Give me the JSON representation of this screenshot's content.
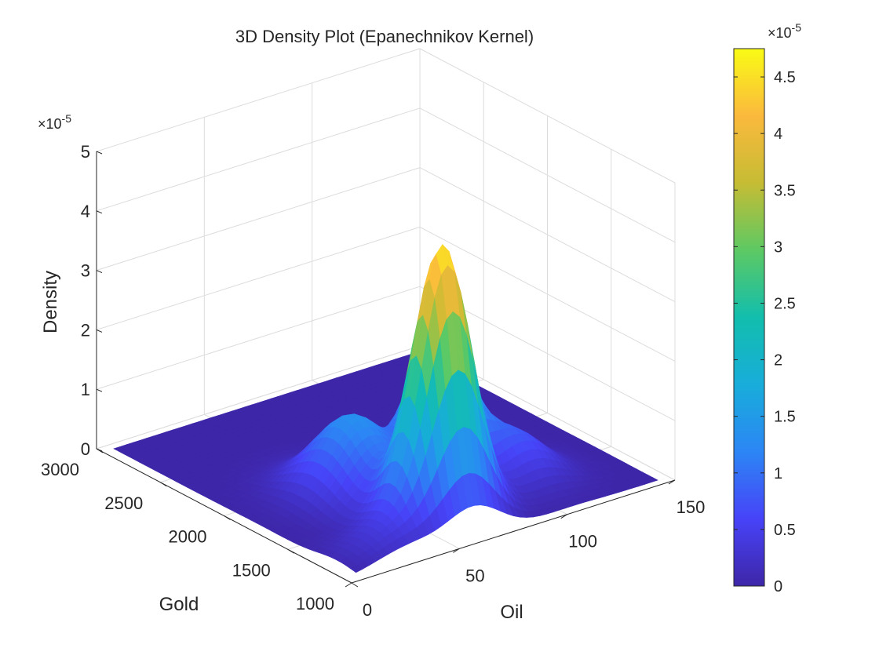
{
  "chart_data": {
    "type": "surface3d",
    "title": "3D Density Plot (Epanechnikov Kernel)",
    "xlabel": "Gold",
    "ylabel": "Oil",
    "zlabel": "Density",
    "z_exponent_label": "×10",
    "z_exponent_power": "-5",
    "xlim": [
      1000,
      3000
    ],
    "ylim": [
      0,
      150
    ],
    "zlim": [
      0,
      5
    ],
    "x_ticks": [
      "1000",
      "1500",
      "2000",
      "2500",
      "3000"
    ],
    "y_ticks": [
      "0",
      "50",
      "100",
      "150"
    ],
    "z_ticks": [
      "0",
      "1",
      "2",
      "3",
      "4",
      "5"
    ],
    "grid": true,
    "surface": {
      "x_range": [
        1050,
        2950
      ],
      "y_range": [
        5,
        145
      ],
      "baseline": 0.0,
      "peaks": [
        {
          "gold": 1300,
          "oil": 60,
          "height": 4.55,
          "sd_gold": 120,
          "sd_oil": 12
        },
        {
          "gold": 1750,
          "oil": 85,
          "height": 2.5,
          "sd_gold": 140,
          "sd_oil": 10
        },
        {
          "gold": 1800,
          "oil": 48,
          "height": 1.35,
          "sd_gold": 220,
          "sd_oil": 14
        },
        {
          "gold": 1500,
          "oil": 105,
          "height": 0.75,
          "sd_gold": 170,
          "sd_oil": 12
        },
        {
          "gold": 1200,
          "oil": 30,
          "height": 0.4,
          "sd_gold": 150,
          "sd_oil": 15
        }
      ]
    },
    "colorbar": {
      "colormap": "parula",
      "range": [
        0,
        4.75
      ],
      "ticks": [
        "0",
        "0.5",
        "1",
        "1.5",
        "2",
        "2.5",
        "3",
        "3.5",
        "4",
        "4.5"
      ],
      "exponent_label": "×10",
      "exponent_power": "-5",
      "stops": [
        "#3e26a8",
        "#4743f8",
        "#2c86f5",
        "#18adda",
        "#12bead",
        "#5dc963",
        "#c6bc34",
        "#fbb93d",
        "#f9fb15"
      ]
    }
  }
}
